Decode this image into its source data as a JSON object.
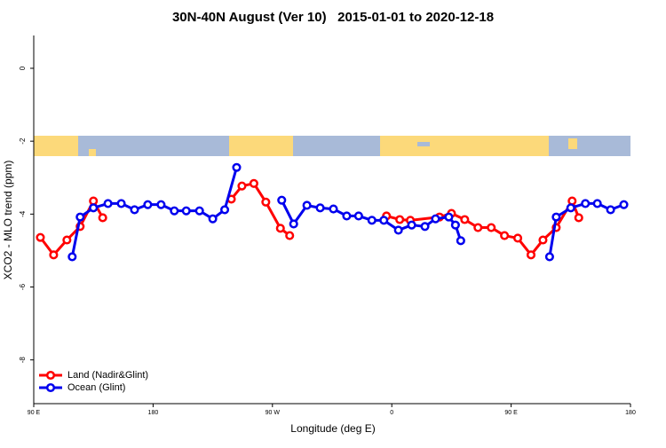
{
  "chart_data": {
    "type": "line",
    "title": "30N-40N August (Ver 10)   2015-01-01 to 2020-12-18",
    "xlabel": "Longitude (deg E)",
    "ylabel": "XCO2 - MLO trend (ppm)",
    "xlim": [
      90,
      540
    ],
    "xticks": [
      {
        "value": 90,
        "label": "90 E"
      },
      {
        "value": 180,
        "label": "180"
      },
      {
        "value": 270,
        "label": "90 W"
      },
      {
        "value": 360,
        "label": "0"
      },
      {
        "value": 450,
        "label": "90 E"
      },
      {
        "value": 540,
        "label": "180"
      }
    ],
    "ylim": [
      -9.2,
      0.9
    ],
    "yticks": [
      0,
      -2,
      -4,
      -6,
      -8
    ],
    "legend": "bottom-left",
    "series": [
      {
        "name": "Land (Nadir&Glint)",
        "color": "#ff0000",
        "x": [
          95,
          105,
          115,
          125,
          135,
          142,
          null,
          239,
          247,
          256,
          265,
          276,
          283,
          null,
          356,
          366,
          374,
          396,
          405,
          415,
          425,
          435,
          445,
          455,
          465,
          474,
          484,
          496,
          501
        ],
        "values": [
          -4.64,
          -5.12,
          -4.71,
          -4.34,
          -3.64,
          -4.1,
          null,
          -3.59,
          -3.23,
          -3.16,
          -3.67,
          -4.39,
          -4.59,
          null,
          -4.05,
          -4.15,
          -4.17,
          -4.08,
          -3.98,
          -4.15,
          -4.37,
          -4.37,
          -4.59,
          -4.66,
          -5.12,
          -4.71,
          -4.37,
          -3.64,
          -4.1
        ]
      },
      {
        "name": "Ocean (Glint)",
        "color": "#0000ee",
        "x": [
          119,
          125,
          135,
          146,
          156,
          166,
          176,
          186,
          196,
          205,
          215,
          225,
          234,
          243,
          null,
          277,
          286,
          296,
          306,
          316,
          326,
          335,
          345,
          354,
          365,
          375,
          385,
          393,
          403,
          408,
          412,
          null,
          479,
          484,
          495,
          506,
          515,
          525,
          535
        ],
        "values": [
          -5.17,
          -4.08,
          -3.83,
          -3.71,
          -3.71,
          -3.88,
          -3.74,
          -3.74,
          -3.91,
          -3.91,
          -3.91,
          -4.13,
          -3.88,
          -2.72,
          null,
          -3.62,
          -4.27,
          -3.76,
          -3.83,
          -3.86,
          -4.05,
          -4.05,
          -4.17,
          -4.17,
          -4.44,
          -4.3,
          -4.34,
          -4.13,
          -4.08,
          -4.3,
          -4.73,
          null,
          -5.17,
          -4.08,
          -3.83,
          -3.71,
          -3.71,
          -3.88,
          -3.74
        ]
      }
    ]
  }
}
